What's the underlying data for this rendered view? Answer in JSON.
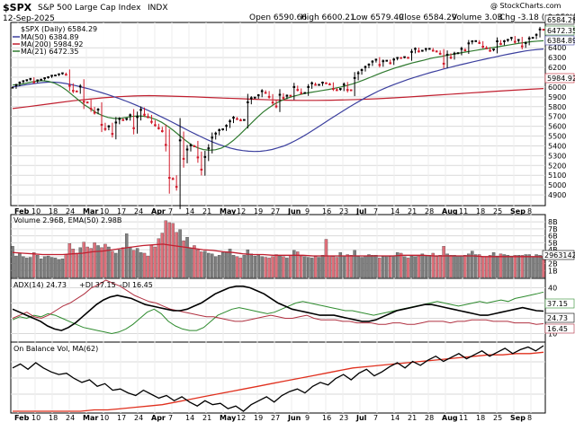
{
  "header": {
    "symbol": "$SPX",
    "name": "S&P 500 Large Cap Index",
    "exchange": "INDX",
    "date": "12-Sep-2025",
    "watermark": "@ StockCharts.com",
    "open": "Open 6590.66",
    "high": "High 6600.21",
    "low": "Low 6579.49",
    "close": "Close 6584.29",
    "volume": "Volume 3.0B",
    "chg": "Chg -3.18 (-0.05%)"
  },
  "legend": {
    "price": "$SPX (Daily) 6584.29",
    "ma50": "MA(50) 6384.89",
    "ma200": "MA(200) 5984.92",
    "ma21": "MA(21) 6472.35",
    "volume": "Volume 2.96B, EMA(50) 2.98B",
    "adx": "ADX(14) 24.73",
    "pdi": "+DI 37.15",
    "mdi": "-DI 16.45",
    "obv": "On Balance Vol, MA(62)"
  },
  "colors": {
    "up": "#000000",
    "down": "#d11a2a",
    "ma50": "#3b3f9e",
    "ma200": "#c01f2f",
    "ma21": "#2f7a2f",
    "volUp": "#7f7f7f",
    "volDown": "#e0707b",
    "pdi": "#2e8b2e",
    "mdi": "#b03040",
    "adx": "#000000",
    "obv": "#000000",
    "obvma": "#e0301e",
    "grid": "#d9d9d9"
  },
  "chart_data": [
    {
      "type": "line",
      "panel": "price",
      "title": "$SPX (Daily)",
      "y_ticks": [
        4900,
        5000,
        5100,
        5200,
        5300,
        5400,
        5500,
        5600,
        5700,
        5800,
        5900,
        6000,
        6100,
        6200,
        6300,
        6400
      ],
      "ylim": [
        4800,
        6640
      ],
      "last_value_labels": [
        "6584.29",
        "6472.35",
        "6384.89",
        "5984.92"
      ],
      "x_ticks": [
        "Feb",
        "10",
        "18",
        "24",
        "Mar",
        "10",
        "17",
        "24",
        "Apr",
        "7",
        "14",
        "21",
        "May",
        "12",
        "19",
        "27",
        "Jun",
        "9",
        "16",
        "23",
        "Jul",
        "7",
        "14",
        "21",
        "28",
        "Aug",
        "11",
        "18",
        "25",
        "Sep",
        "8"
      ],
      "series": [
        {
          "name": "$SPX (Daily)",
          "key": "close",
          "values": [
            5994,
            6020,
            6045,
            6060,
            6070,
            6083,
            6050,
            6068,
            6075,
            6090,
            6100,
            6115,
            6118,
            6130,
            6140,
            6125,
            6013,
            5961,
            5955,
            6005,
            5850,
            5842,
            5778,
            5738,
            5770,
            5615,
            5572,
            5599,
            5522,
            5638,
            5675,
            5663,
            5675,
            5712,
            5580,
            5694,
            5767,
            5718,
            5693,
            5645,
            5611,
            5580,
            5550,
            5410,
            5074,
            5062,
            4982,
            5456,
            5268,
            5363,
            5405,
            5396,
            5282,
            5158,
            5287,
            5375,
            5484,
            5525,
            5560,
            5569,
            5604,
            5650,
            5687,
            5673,
            5660,
            5664,
            5844,
            5886,
            5892,
            5916,
            5958,
            5940,
            5900,
            5842,
            5802,
            5921,
            5888,
            5912,
            5911,
            6000,
            5970,
            5938,
            5939,
            6000,
            6038,
            6022,
            6022,
            6045,
            6038,
            6026,
            5981,
            5968,
            5980,
            6025,
            5970,
            5967,
            6092,
            6141,
            6173,
            6204,
            6229,
            6259,
            6279,
            6225,
            6263,
            6268,
            6243,
            6280,
            6297,
            6296,
            6305,
            6297,
            6358,
            6389,
            6363,
            6370,
            6388,
            6389,
            6370,
            6362,
            6339,
            6238,
            6329,
            6299,
            6340,
            6345,
            6389,
            6373,
            6445,
            6466,
            6468,
            6449,
            6411,
            6395,
            6370,
            6383,
            6466,
            6439,
            6467,
            6481,
            6501,
            6461,
            6480,
            6415,
            6448,
            6495,
            6502,
            6532,
            6587,
            6584
          ]
        },
        {
          "name": "MA(50)",
          "key": "ma50",
          "values": [
            6000,
            6010,
            6020,
            6030,
            6038,
            6045,
            6050,
            6050,
            6045,
            6036,
            6024,
            6010,
            5995,
            5980,
            5962,
            5944,
            5925,
            5905,
            5884,
            5862,
            5838,
            5813,
            5787,
            5760,
            5732,
            5703,
            5673,
            5643,
            5612,
            5581,
            5550,
            5520,
            5491,
            5463,
            5437,
            5414,
            5394,
            5376,
            5362,
            5352,
            5346,
            5343,
            5345,
            5352,
            5363,
            5380,
            5400,
            5425,
            5455,
            5488,
            5524,
            5562,
            5601,
            5640,
            5680,
            5718,
            5756,
            5793,
            5829,
            5864,
            5897,
            5928,
            5958,
            5985,
            6010,
            6033,
            6055,
            6076,
            6096,
            6115,
            6133,
            6150,
            6166,
            6183,
            6198,
            6213,
            6228,
            6242,
            6256,
            6270,
            6283,
            6296,
            6309,
            6322,
            6334,
            6346,
            6357,
            6368,
            6376,
            6383,
            6387
          ]
        },
        {
          "name": "MA(200)",
          "key": "ma200",
          "values": [
            5780,
            5800,
            5820,
            5840,
            5860,
            5876,
            5890,
            5901,
            5909,
            5912,
            5909,
            5904,
            5899,
            5893,
            5887,
            5881,
            5875,
            5869,
            5866,
            5864,
            5864,
            5866,
            5869,
            5874,
            5880,
            5888,
            5898,
            5908,
            5918,
            5928,
            5938,
            5948,
            5958,
            5967,
            5976,
            5985
          ]
        },
        {
          "name": "MA(21)",
          "key": "ma21",
          "values": [
            6020,
            6025,
            6035,
            6050,
            6060,
            6065,
            6058,
            6040,
            6010,
            5970,
            5920,
            5870,
            5820,
            5780,
            5740,
            5710,
            5690,
            5680,
            5680,
            5690,
            5700,
            5705,
            5702,
            5690,
            5670,
            5640,
            5600,
            5555,
            5505,
            5455,
            5410,
            5380,
            5362,
            5356,
            5360,
            5378,
            5410,
            5455,
            5510,
            5570,
            5630,
            5690,
            5745,
            5790,
            5830,
            5860,
            5885,
            5905,
            5920,
            5935,
            5945,
            5955,
            5965,
            5975,
            5987,
            6000,
            6015,
            6032,
            6052,
            6075,
            6100,
            6125,
            6148,
            6170,
            6192,
            6210,
            6228,
            6245,
            6260,
            6275,
            6290,
            6303,
            6313,
            6325,
            6336,
            6347,
            6357,
            6367,
            6377,
            6387,
            6397,
            6407,
            6417,
            6427,
            6437,
            6447,
            6455,
            6462,
            6468,
            6472
          ]
        }
      ]
    },
    {
      "type": "bar",
      "panel": "volume",
      "title": "Volume",
      "y_ticks": [
        "1B",
        "2B",
        "3B",
        "4B",
        "5B",
        "6B",
        "7B",
        "8B"
      ],
      "ylim": [
        0,
        8.8
      ],
      "unit": "B",
      "last_value_label": "2963142",
      "series": [
        {
          "name": "Volume",
          "values": [
            4.5,
            3.1,
            3.4,
            3.0,
            2.8,
            2.9,
            3.6,
            3.2,
            2.7,
            3.0,
            3.1,
            2.9,
            2.8,
            2.6,
            2.7,
            3.3,
            4.9,
            4.1,
            3.5,
            4.3,
            5.1,
            4.4,
            4.2,
            5.0,
            4.6,
            4.3,
            4.8,
            4.4,
            3.8,
            3.5,
            4.0,
            4.3,
            6.3,
            4.4,
            3.9,
            4.2,
            3.6,
            3.5,
            3.1,
            4.7,
            4.4,
            5.6,
            6.4,
            8.2,
            7.9,
            7.8,
            6.5,
            6.9,
            5.3,
            5.8,
            4.2,
            4.6,
            4.0,
            3.7,
            3.8,
            3.5,
            3.4,
            3.0,
            3.2,
            3.6,
            3.7,
            4.1,
            3.2,
            3.0,
            2.8,
            3.2,
            4.0,
            3.4,
            3.1,
            3.3,
            3.0,
            2.9,
            2.8,
            3.0,
            3.3,
            3.1,
            3.0,
            2.8,
            3.2,
            3.9,
            3.7,
            3.1,
            3.0,
            2.9,
            2.8,
            3.0,
            2.9,
            3.2,
            5.5,
            3.1,
            3.0,
            2.9,
            3.6,
            3.1,
            3.3,
            3.2,
            3.9,
            3.0,
            2.9,
            3.1,
            3.3,
            3.2,
            3.2,
            2.8,
            3.0,
            3.1,
            3.0,
            3.1,
            3.6,
            3.5,
            3.0,
            2.8,
            3.1,
            3.0,
            3.1,
            3.4,
            3.2,
            3.2,
            3.5,
            3.0,
            3.2,
            4.5,
            3.4,
            3.2,
            3.2,
            3.1,
            3.1,
            3.2,
            3.4,
            3.8,
            3.3,
            3.3,
            3.0,
            3.0,
            3.2,
            3.6,
            3.1,
            3.4,
            3.3,
            3.2,
            3.1,
            3.2,
            3.2,
            3.2,
            3.3,
            3.3,
            3.0,
            3.3,
            3.2,
            2.96
          ]
        },
        {
          "name": "EMA(50)",
          "values": [
            3.6,
            3.5,
            3.4,
            3.3,
            3.3,
            3.3,
            3.4,
            3.5,
            3.7,
            3.8,
            4.0,
            4.2,
            4.4,
            4.6,
            4.7,
            4.8,
            4.6,
            4.4,
            4.2,
            4.0,
            3.9,
            3.7,
            3.6,
            3.4,
            3.3,
            3.3,
            3.2,
            3.2,
            3.2,
            3.2,
            3.1,
            3.1,
            3.1,
            3.1,
            3.1,
            3.1,
            3.1,
            3.1,
            3.1,
            3.2,
            3.2,
            3.2,
            3.1,
            3.1,
            3.1,
            3.1,
            3.1,
            3.0,
            3.0,
            3.0,
            3.0,
            3.0,
            3.0,
            2.98
          ]
        }
      ]
    },
    {
      "type": "line",
      "panel": "adx",
      "title": "ADX(14)",
      "y_ticks": [
        "10",
        "20",
        "30",
        "40"
      ],
      "ylim": [
        5,
        45
      ],
      "last_value_labels": [
        "37.15",
        "24.73",
        "16.45"
      ],
      "series": [
        {
          "name": "ADX(14)",
          "values": [
            26,
            24,
            22,
            20,
            18,
            15,
            13,
            12,
            14,
            17,
            21,
            25,
            29,
            32,
            34,
            35,
            34,
            33,
            31,
            29,
            28,
            27,
            26,
            25,
            25,
            26,
            28,
            30,
            33,
            36,
            38,
            40,
            41,
            41,
            40,
            38,
            36,
            33,
            30,
            28,
            26,
            25,
            24,
            23,
            22,
            22,
            22,
            21,
            20,
            19,
            18,
            18,
            19,
            21,
            23,
            25,
            26,
            27,
            28,
            29,
            29,
            28,
            27,
            26,
            25,
            24,
            23,
            22,
            22,
            23,
            24,
            25,
            26,
            27,
            26,
            25,
            24.73
          ]
        },
        {
          "name": "+DI",
          "values": [
            19,
            21,
            20,
            22,
            21,
            23,
            22,
            20,
            18,
            16,
            14,
            13,
            12,
            11,
            10,
            11,
            13,
            16,
            20,
            24,
            26,
            23,
            18,
            15,
            13,
            12,
            12,
            14,
            18,
            22,
            24,
            26,
            27,
            26,
            25,
            24,
            23,
            24,
            26,
            28,
            30,
            31,
            30,
            29,
            28,
            27,
            26,
            25,
            25,
            24,
            23,
            22,
            23,
            24,
            25,
            26,
            27,
            28,
            29,
            30,
            31,
            30,
            29,
            28,
            29,
            30,
            31,
            30,
            31,
            32,
            31,
            33,
            34,
            35,
            36,
            37.15
          ]
        },
        {
          "name": "-DI",
          "values": [
            20,
            22,
            24,
            21,
            20,
            22,
            25,
            28,
            30,
            33,
            36,
            40,
            42,
            45,
            43,
            41,
            38,
            35,
            33,
            31,
            30,
            28,
            26,
            25,
            24,
            23,
            22,
            21,
            21,
            20,
            19,
            18,
            18,
            19,
            20,
            21,
            22,
            21,
            20,
            20,
            21,
            22,
            20,
            19,
            19,
            19,
            18,
            18,
            17,
            17,
            17,
            16,
            16,
            17,
            17,
            16,
            16,
            17,
            18,
            18,
            18,
            17,
            18,
            18,
            19,
            19,
            19,
            18,
            18,
            18,
            17,
            17,
            17,
            16,
            16.45
          ]
        }
      ]
    },
    {
      "type": "line",
      "panel": "obv",
      "title": "On Balance Vol",
      "series": [
        {
          "name": "On Balance Vol",
          "values": [
            50,
            53,
            49,
            54,
            50,
            47,
            45,
            46,
            42,
            39,
            41,
            36,
            38,
            33,
            34,
            31,
            29,
            33,
            30,
            27,
            29,
            25,
            28,
            24,
            21,
            25,
            22,
            23,
            19,
            21,
            17,
            22,
            25,
            28,
            24,
            29,
            32,
            34,
            31,
            36,
            39,
            37,
            42,
            45,
            41,
            46,
            49,
            44,
            47,
            51,
            54,
            50,
            55,
            52,
            56,
            59,
            55,
            58,
            61,
            57,
            60,
            63,
            59,
            62,
            65,
            61,
            64,
            66,
            63,
            67
          ]
        },
        {
          "name": "MA(62)",
          "values": [
            17,
            17,
            17,
            17,
            17,
            17,
            18,
            18,
            19,
            20,
            21,
            22,
            24,
            26,
            28,
            30,
            32,
            34,
            36,
            38,
            40,
            42,
            44,
            46,
            48,
            50,
            51,
            52,
            53,
            54,
            55,
            56,
            57,
            58,
            59,
            60,
            60,
            61,
            61,
            62
          ]
        }
      ],
      "circled_dates": [
        "Mar",
        "24",
        "Apr 7",
        "21"
      ]
    }
  ]
}
